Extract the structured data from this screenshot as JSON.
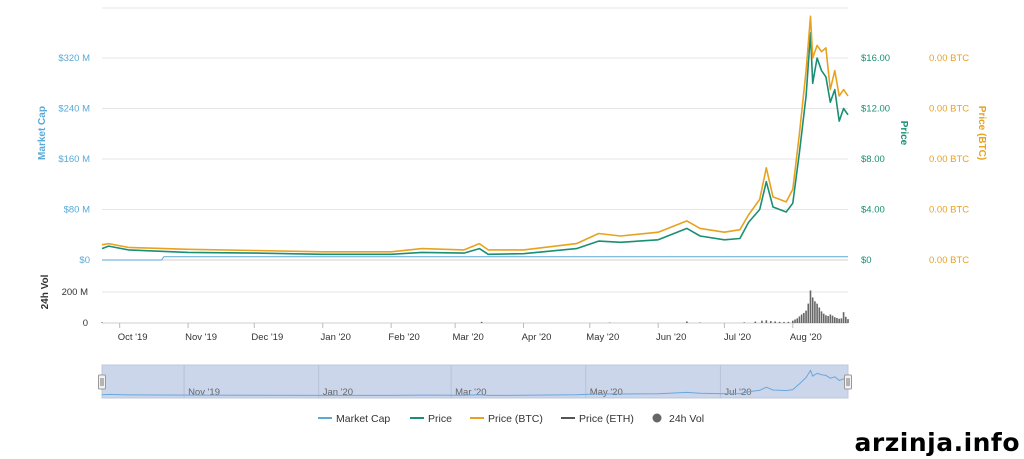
{
  "chart_data": {
    "type": "line",
    "x_start": "2019-09-23",
    "x_end": "2020-08-26",
    "x_ticks": [
      "Oct '19",
      "Nov '19",
      "Dec '19",
      "Jan '20",
      "Feb '20",
      "Mar '20",
      "Apr '20",
      "May '20",
      "Jun '20",
      "Jul '20",
      "Aug '20"
    ],
    "axes": {
      "market_cap": {
        "label": "Market Cap",
        "ticks": [
          "$0",
          "$80 M",
          "$160 M",
          "$240 M",
          "$320 M"
        ],
        "ylim": [
          0,
          320
        ],
        "color": "#5aa9d6"
      },
      "price": {
        "label": "Price",
        "ticks": [
          "$0",
          "$4.00",
          "$8.00",
          "$12.00",
          "$16.00"
        ],
        "ylim": [
          0,
          16
        ],
        "color": "#1a8f73"
      },
      "price_btc": {
        "label": "Price (BTC)",
        "ticks": [
          "0.00 BTC",
          "0.00 BTC",
          "0.00 BTC",
          "0.00 BTC",
          "0.00 BTC"
        ],
        "color": "#e8a21f"
      },
      "volume": {
        "label": "24h Vol",
        "ticks": [
          "0",
          "200 M"
        ],
        "ylim": [
          0,
          400
        ],
        "color": "#555555"
      }
    },
    "series": [
      {
        "name": "Market Cap",
        "color": "#5aa9d6",
        "points": [
          [
            "2019-09-23",
            0
          ],
          [
            "2019-10-20",
            0
          ],
          [
            "2019-10-21",
            5
          ],
          [
            "2020-08-26",
            5
          ]
        ]
      },
      {
        "name": "Price",
        "color": "#1a8f73",
        "points": [
          [
            "2019-09-23",
            0.9
          ],
          [
            "2019-09-26",
            1.1
          ],
          [
            "2019-10-05",
            0.8
          ],
          [
            "2019-11-01",
            0.6
          ],
          [
            "2019-12-01",
            0.55
          ],
          [
            "2020-01-01",
            0.45
          ],
          [
            "2020-02-01",
            0.45
          ],
          [
            "2020-02-15",
            0.6
          ],
          [
            "2020-03-05",
            0.55
          ],
          [
            "2020-03-12",
            0.9
          ],
          [
            "2020-03-16",
            0.45
          ],
          [
            "2020-04-01",
            0.5
          ],
          [
            "2020-04-25",
            0.9
          ],
          [
            "2020-05-05",
            1.5
          ],
          [
            "2020-05-15",
            1.4
          ],
          [
            "2020-06-01",
            1.6
          ],
          [
            "2020-06-14",
            2.5
          ],
          [
            "2020-06-20",
            1.9
          ],
          [
            "2020-07-01",
            1.6
          ],
          [
            "2020-07-08",
            1.7
          ],
          [
            "2020-07-12",
            3.0
          ],
          [
            "2020-07-17",
            4.0
          ],
          [
            "2020-07-20",
            6.2
          ],
          [
            "2020-07-23",
            4.2
          ],
          [
            "2020-07-26",
            4.0
          ],
          [
            "2020-07-29",
            3.8
          ],
          [
            "2020-08-01",
            4.5
          ],
          [
            "2020-08-04",
            8.5
          ],
          [
            "2020-08-07",
            13.0
          ],
          [
            "2020-08-09",
            18.0
          ],
          [
            "2020-08-10",
            14.0
          ],
          [
            "2020-08-12",
            16.0
          ],
          [
            "2020-08-14",
            15.0
          ],
          [
            "2020-08-16",
            14.5
          ],
          [
            "2020-08-18",
            12.5
          ],
          [
            "2020-08-20",
            13.5
          ],
          [
            "2020-08-22",
            11.0
          ],
          [
            "2020-08-24",
            12.0
          ],
          [
            "2020-08-26",
            11.5
          ]
        ]
      },
      {
        "name": "Price (BTC)",
        "color": "#e8a21f",
        "points": [
          [
            "2019-09-23",
            1.2
          ],
          [
            "2019-09-26",
            1.3
          ],
          [
            "2019-10-05",
            1.0
          ],
          [
            "2019-11-01",
            0.85
          ],
          [
            "2019-12-01",
            0.75
          ],
          [
            "2020-01-01",
            0.65
          ],
          [
            "2020-02-01",
            0.65
          ],
          [
            "2020-02-15",
            0.9
          ],
          [
            "2020-03-05",
            0.8
          ],
          [
            "2020-03-12",
            1.3
          ],
          [
            "2020-03-16",
            0.8
          ],
          [
            "2020-04-01",
            0.8
          ],
          [
            "2020-04-25",
            1.3
          ],
          [
            "2020-05-05",
            2.1
          ],
          [
            "2020-05-15",
            1.9
          ],
          [
            "2020-06-01",
            2.2
          ],
          [
            "2020-06-14",
            3.1
          ],
          [
            "2020-06-20",
            2.5
          ],
          [
            "2020-07-01",
            2.2
          ],
          [
            "2020-07-08",
            2.4
          ],
          [
            "2020-07-12",
            3.6
          ],
          [
            "2020-07-17",
            4.8
          ],
          [
            "2020-07-20",
            7.3
          ],
          [
            "2020-07-23",
            5.0
          ],
          [
            "2020-07-26",
            4.8
          ],
          [
            "2020-07-29",
            4.6
          ],
          [
            "2020-08-01",
            5.6
          ],
          [
            "2020-08-04",
            10.0
          ],
          [
            "2020-08-07",
            15.0
          ],
          [
            "2020-08-09",
            19.3
          ],
          [
            "2020-08-10",
            16.0
          ],
          [
            "2020-08-12",
            17.0
          ],
          [
            "2020-08-14",
            16.5
          ],
          [
            "2020-08-16",
            16.8
          ],
          [
            "2020-08-18",
            13.5
          ],
          [
            "2020-08-20",
            15.0
          ],
          [
            "2020-08-22",
            13.0
          ],
          [
            "2020-08-24",
            13.5
          ],
          [
            "2020-08-26",
            13.0
          ]
        ]
      },
      {
        "name": "Price (ETH)",
        "color": "#555555",
        "points": []
      },
      {
        "name": "24h Vol",
        "color": "#666666",
        "type": "bar",
        "points": [
          [
            "2019-09-23",
            8
          ],
          [
            "2020-03-13",
            15
          ],
          [
            "2020-05-10",
            5
          ],
          [
            "2020-06-14",
            20
          ],
          [
            "2020-06-20",
            6
          ],
          [
            "2020-07-10",
            8
          ],
          [
            "2020-07-15",
            18
          ],
          [
            "2020-07-18",
            30
          ],
          [
            "2020-07-20",
            35
          ],
          [
            "2020-07-22",
            25
          ],
          [
            "2020-07-24",
            20
          ],
          [
            "2020-07-26",
            15
          ],
          [
            "2020-07-28",
            12
          ],
          [
            "2020-07-30",
            15
          ],
          [
            "2020-08-01",
            30
          ],
          [
            "2020-08-02",
            45
          ],
          [
            "2020-08-03",
            60
          ],
          [
            "2020-08-04",
            85
          ],
          [
            "2020-08-05",
            110
          ],
          [
            "2020-08-06",
            130
          ],
          [
            "2020-08-07",
            160
          ],
          [
            "2020-08-08",
            250
          ],
          [
            "2020-08-09",
            420
          ],
          [
            "2020-08-10",
            330
          ],
          [
            "2020-08-11",
            280
          ],
          [
            "2020-08-12",
            250
          ],
          [
            "2020-08-13",
            200
          ],
          [
            "2020-08-14",
            150
          ],
          [
            "2020-08-15",
            120
          ],
          [
            "2020-08-16",
            100
          ],
          [
            "2020-08-17",
            90
          ],
          [
            "2020-08-18",
            110
          ],
          [
            "2020-08-19",
            95
          ],
          [
            "2020-08-20",
            75
          ],
          [
            "2020-08-21",
            65
          ],
          [
            "2020-08-22",
            55
          ],
          [
            "2020-08-23",
            60
          ],
          [
            "2020-08-24",
            140
          ],
          [
            "2020-08-25",
            80
          ],
          [
            "2020-08-26",
            50
          ]
        ]
      }
    ],
    "navigator": {
      "labels": [
        "Nov '19",
        "Jan '20",
        "Mar '20",
        "May '20",
        "Jul '20"
      ]
    },
    "legend": [
      "Market Cap",
      "Price",
      "Price (BTC)",
      "Price (ETH)",
      "24h Vol"
    ]
  },
  "watermark": "arzinja.info"
}
